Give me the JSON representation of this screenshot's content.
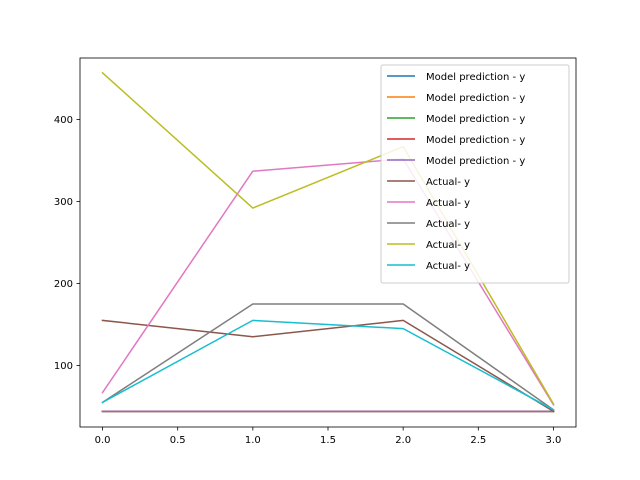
{
  "chart_data": {
    "type": "line",
    "x": [
      0,
      1,
      2,
      3
    ],
    "xlim": [
      -0.15,
      3.15
    ],
    "ylim": [
      25,
      475
    ],
    "xticks": [
      0,
      0.5,
      1,
      1.5,
      2,
      2.5,
      3
    ],
    "xtick_labels": [
      "0.0",
      "0.5",
      "1.0",
      "1.5",
      "2.0",
      "2.5",
      "3.0"
    ],
    "yticks": [
      100,
      200,
      300,
      400
    ],
    "ytick_labels": [
      "100",
      "200",
      "300",
      "400"
    ],
    "grid": false,
    "legend_position": "top-right",
    "series": [
      {
        "name": "Model prediction - y",
        "color": "#1f77b4",
        "values": [
          44,
          44,
          44,
          44
        ]
      },
      {
        "name": "Model prediction - y",
        "color": "#ff7f0e",
        "values": [
          44,
          44,
          44,
          44
        ]
      },
      {
        "name": "Model prediction - y",
        "color": "#2ca02c",
        "values": [
          44,
          44,
          44,
          44
        ]
      },
      {
        "name": "Model prediction - y",
        "color": "#d62728",
        "values": [
          44,
          44,
          44,
          44
        ]
      },
      {
        "name": "Model prediction - y",
        "color": "#9467bd",
        "values": [
          44,
          44,
          44,
          44
        ]
      },
      {
        "name": "Actual- y",
        "color": "#8c564b",
        "values": [
          155,
          135,
          155,
          44
        ]
      },
      {
        "name": "Actual- y",
        "color": "#e377c2",
        "values": [
          67,
          337,
          352,
          52
        ]
      },
      {
        "name": "Actual- y",
        "color": "#7f7f7f",
        "values": [
          55,
          175,
          175,
          46
        ]
      },
      {
        "name": "Actual- y",
        "color": "#bcbd22",
        "values": [
          457,
          292,
          367,
          53
        ]
      },
      {
        "name": "Actual- y",
        "color": "#17becf",
        "values": [
          55,
          155,
          145,
          46
        ]
      }
    ]
  }
}
